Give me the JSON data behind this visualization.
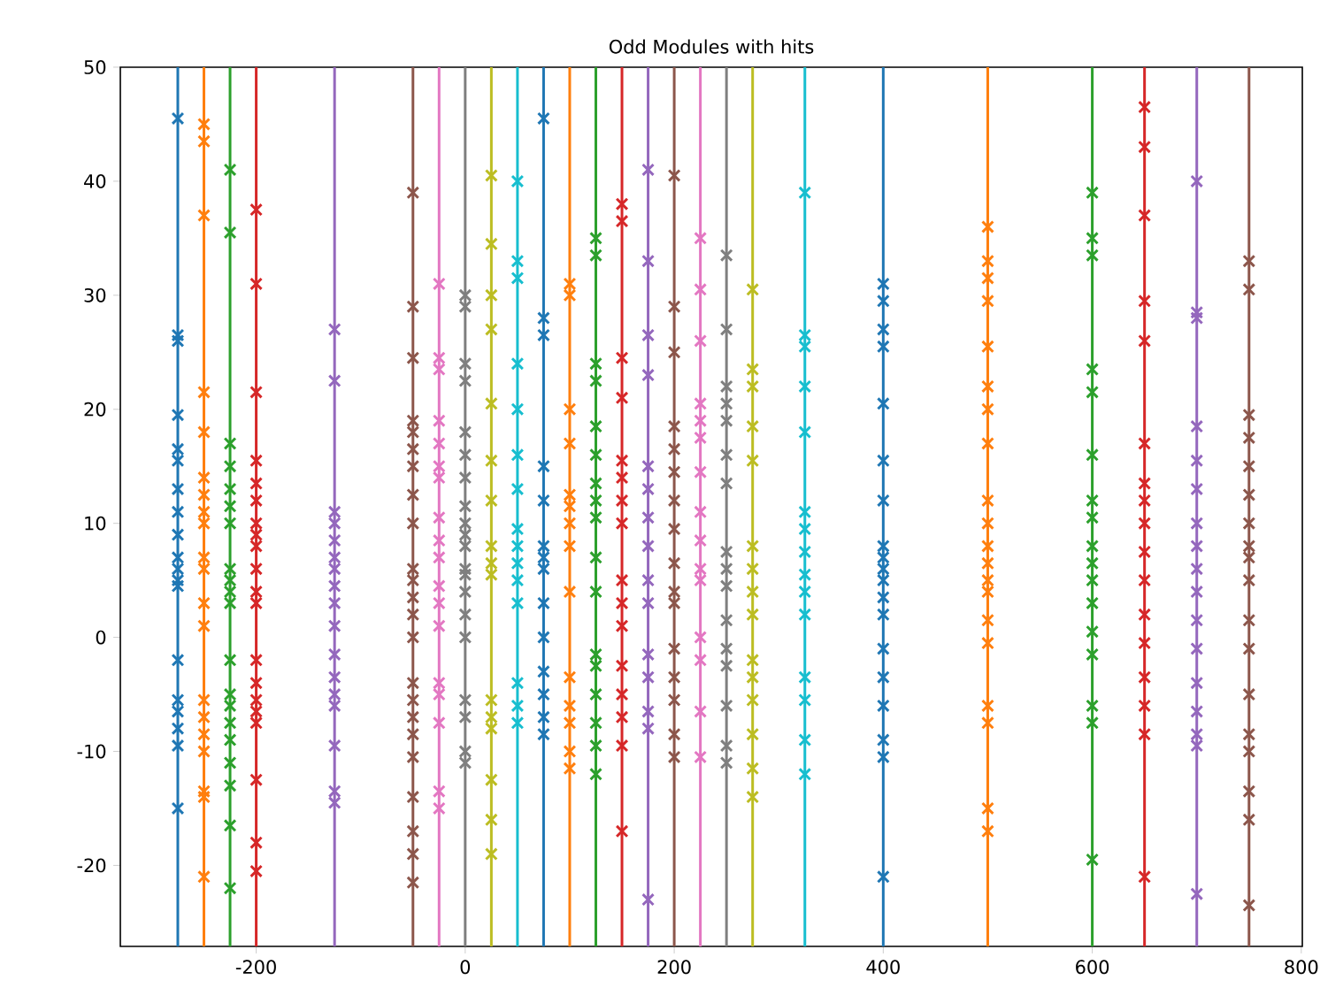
{
  "chart_data": {
    "type": "scatter",
    "title": "Odd Modules with hits",
    "marker": "cross",
    "xlim": [
      -330,
      801
    ],
    "ylim": [
      -27.1,
      50
    ],
    "xticks": [
      -200,
      0,
      200,
      400,
      600,
      800
    ],
    "yticks": [
      -20,
      -10,
      0,
      10,
      20,
      30,
      40,
      50
    ],
    "ref_lines": [
      {
        "axis": "x",
        "value": -275,
        "color": "#1f77b4"
      },
      {
        "axis": "x",
        "value": -250,
        "color": "#ff7f0e"
      },
      {
        "axis": "x",
        "value": -225,
        "color": "#2ca02c"
      },
      {
        "axis": "x",
        "value": -200,
        "color": "#d62728"
      },
      {
        "axis": "x",
        "value": -125,
        "color": "#9467bd"
      },
      {
        "axis": "x",
        "value": -50,
        "color": "#8c564b"
      },
      {
        "axis": "x",
        "value": -25,
        "color": "#e377c2"
      },
      {
        "axis": "x",
        "value": 0,
        "color": "#7f7f7f"
      },
      {
        "axis": "x",
        "value": 25,
        "color": "#bcbd22"
      },
      {
        "axis": "x",
        "value": 50,
        "color": "#17becf"
      },
      {
        "axis": "x",
        "value": 75,
        "color": "#1f77b4"
      },
      {
        "axis": "x",
        "value": 100,
        "color": "#ff7f0e"
      },
      {
        "axis": "x",
        "value": 125,
        "color": "#2ca02c"
      },
      {
        "axis": "x",
        "value": 150,
        "color": "#d62728"
      },
      {
        "axis": "x",
        "value": 175,
        "color": "#9467bd"
      },
      {
        "axis": "x",
        "value": 200,
        "color": "#8c564b"
      },
      {
        "axis": "x",
        "value": 225,
        "color": "#e377c2"
      },
      {
        "axis": "x",
        "value": 250,
        "color": "#7f7f7f"
      },
      {
        "axis": "x",
        "value": 275,
        "color": "#bcbd22"
      },
      {
        "axis": "x",
        "value": 325,
        "color": "#17becf"
      },
      {
        "axis": "x",
        "value": 400,
        "color": "#1f77b4"
      },
      {
        "axis": "x",
        "value": 500,
        "color": "#ff7f0e"
      },
      {
        "axis": "x",
        "value": 600,
        "color": "#2ca02c"
      },
      {
        "axis": "x",
        "value": 650,
        "color": "#d62728"
      },
      {
        "axis": "x",
        "value": 700,
        "color": "#9467bd"
      },
      {
        "axis": "x",
        "value": 750,
        "color": "#8c564b"
      }
    ],
    "series": [
      {
        "color": "#1f77b4",
        "x": [
          -275,
          -275,
          -275,
          -275,
          -275,
          -275,
          -275,
          -275,
          -275,
          -275,
          -275,
          -275,
          -275,
          -275,
          -275,
          -275,
          -275,
          -275,
          -275
        ],
        "values": [
          45.5,
          26.5,
          26,
          19.5,
          16.5,
          15.5,
          13,
          11,
          9,
          7,
          6,
          5,
          4.5,
          -2,
          -5.5,
          -6.5,
          -8,
          -9.5,
          -15
        ]
      },
      {
        "color": "#ff7f0e",
        "x": [
          -250,
          -250,
          -250,
          -250,
          -250,
          -250,
          -250,
          -250,
          -250,
          -250,
          -250,
          -250,
          -250,
          -250,
          -250,
          -250,
          -250,
          -250,
          -250,
          -250
        ],
        "values": [
          43.5,
          45,
          37,
          21.5,
          18,
          14,
          12.5,
          11,
          10,
          7,
          6,
          3,
          1,
          -5.5,
          -7,
          -8.5,
          -10,
          -13.5,
          -14,
          -21
        ]
      },
      {
        "color": "#2ca02c",
        "x": [
          -225,
          -225,
          -225,
          -225,
          -225,
          -225,
          -225,
          -225,
          -225,
          -225,
          -225,
          -225,
          -225,
          -225,
          -225,
          -225,
          -225,
          -225,
          -225,
          -225
        ],
        "values": [
          41,
          35.5,
          17,
          15,
          13,
          11.5,
          10,
          6,
          5,
          4,
          3,
          -2,
          -5,
          -6,
          -7.5,
          -9,
          -11,
          -13,
          -16.5,
          -22
        ]
      },
      {
        "color": "#d62728",
        "x": [
          -200,
          -200,
          -200,
          -200,
          -200,
          -200,
          -200,
          -200,
          -200,
          -200,
          -200,
          -200,
          -200,
          -200,
          -200,
          -200,
          -200,
          -200,
          -200,
          -200
        ],
        "values": [
          37.5,
          31,
          21.5,
          15.5,
          13.5,
          12,
          10,
          9,
          8,
          6,
          4,
          3,
          -2,
          -4,
          -5.5,
          -6.5,
          -7.5,
          -12.5,
          -18,
          -20.5
        ]
      },
      {
        "color": "#9467bd",
        "x": [
          -125,
          -125,
          -125,
          -125,
          -125,
          -125,
          -125,
          -125,
          -125,
          -125,
          -125,
          -125,
          -125,
          -125,
          -125,
          -125,
          -125
        ],
        "values": [
          27,
          22.5,
          11,
          10,
          8.5,
          7,
          6,
          4.5,
          3,
          1,
          -1.5,
          -3.5,
          -5,
          -6,
          -9.5,
          -13.5,
          -14.5
        ]
      },
      {
        "color": "#8c564b",
        "x": [
          -50,
          -50,
          -50,
          -50,
          -50,
          -50,
          -50,
          -50,
          -50,
          -50,
          -50,
          -50,
          -50,
          -50,
          -50,
          -50,
          -50,
          -50,
          -50,
          -50,
          -50,
          -50,
          -50
        ],
        "values": [
          39,
          29,
          24.5,
          19,
          18,
          16.5,
          15,
          12.5,
          10,
          6,
          5,
          3.5,
          2,
          0,
          -4,
          -5.5,
          -7,
          -8.5,
          -10.5,
          -14,
          -17,
          -19,
          -21.5
        ]
      },
      {
        "color": "#e377c2",
        "x": [
          -25,
          -25,
          -25,
          -25,
          -25,
          -25,
          -25,
          -25,
          -25,
          -25,
          -25,
          -25,
          -25,
          -25,
          -25,
          -25,
          -25,
          -25
        ],
        "values": [
          31,
          24.5,
          23.5,
          19,
          17,
          15,
          14,
          10.5,
          8.5,
          7,
          4.5,
          3,
          1,
          -4,
          -5,
          -7.5,
          -13.5,
          -15
        ]
      },
      {
        "color": "#7f7f7f",
        "x": [
          0,
          0,
          0,
          0,
          0,
          0,
          0,
          0,
          0,
          0,
          0,
          0,
          0,
          0,
          0,
          0,
          0,
          0,
          0,
          0
        ],
        "values": [
          30,
          29,
          24,
          22.5,
          18,
          16,
          14,
          11.5,
          10,
          9,
          8,
          6,
          5.5,
          4,
          2,
          0,
          -5.5,
          -7,
          -10,
          -11
        ]
      },
      {
        "color": "#bcbd22",
        "x": [
          25,
          25,
          25,
          25,
          25,
          25,
          25,
          25,
          25,
          25,
          25,
          25,
          25,
          25,
          25,
          25
        ],
        "values": [
          40.5,
          34.5,
          30,
          27,
          20.5,
          15.5,
          12,
          8,
          6.5,
          5.5,
          -5.5,
          -7,
          -8,
          -12.5,
          -16,
          -19
        ]
      },
      {
        "color": "#17becf",
        "x": [
          50,
          50,
          50,
          50,
          50,
          50,
          50,
          50,
          50,
          50,
          50,
          50,
          50,
          50,
          50
        ],
        "values": [
          40,
          33,
          31.5,
          24,
          20,
          16,
          13,
          9.5,
          8,
          6.5,
          5,
          3,
          -4,
          -6,
          -7.5
        ]
      },
      {
        "color": "#1f77b4",
        "x": [
          75,
          75,
          75,
          75,
          75,
          75,
          75,
          75,
          75,
          75,
          75,
          75,
          75,
          75
        ],
        "values": [
          45.5,
          28,
          26.5,
          15,
          12,
          8,
          7,
          6,
          3,
          0,
          -3,
          -5,
          -7,
          -8.5
        ]
      },
      {
        "color": "#ff7f0e",
        "x": [
          100,
          100,
          100,
          100,
          100,
          100,
          100,
          100,
          100,
          100,
          100,
          100,
          100,
          100
        ],
        "values": [
          31,
          30,
          20,
          17,
          12.5,
          11.5,
          10,
          8,
          4,
          -3.5,
          -6,
          -7.5,
          -10,
          -11.5
        ]
      },
      {
        "color": "#2ca02c",
        "x": [
          125,
          125,
          125,
          125,
          125,
          125,
          125,
          125,
          125,
          125,
          125,
          125,
          125,
          125,
          125,
          125,
          125
        ],
        "values": [
          35,
          33.5,
          24,
          22.5,
          18.5,
          16,
          13.5,
          12,
          10.5,
          7,
          4,
          -1.5,
          -2.5,
          -5,
          -7.5,
          -9.5,
          -12
        ]
      },
      {
        "color": "#d62728",
        "x": [
          150,
          150,
          150,
          150,
          150,
          150,
          150,
          150,
          150,
          150,
          150,
          150,
          150,
          150,
          150,
          150
        ],
        "values": [
          38,
          36.5,
          24.5,
          21,
          15.5,
          14,
          12,
          10,
          5,
          3,
          1,
          -2.5,
          -5,
          -7,
          -9.5,
          -17
        ]
      },
      {
        "color": "#9467bd",
        "x": [
          175,
          175,
          175,
          175,
          175,
          175,
          175,
          175,
          175,
          175,
          175,
          175,
          175,
          175,
          175
        ],
        "values": [
          41,
          33,
          26.5,
          23,
          15,
          13,
          10.5,
          8,
          5,
          3,
          -1.5,
          -3.5,
          -6.5,
          -8,
          -23
        ]
      },
      {
        "color": "#8c564b",
        "x": [
          200,
          200,
          200,
          200,
          200,
          200,
          200,
          200,
          200,
          200,
          200,
          200,
          200,
          200,
          200,
          200
        ],
        "values": [
          40.5,
          29,
          25,
          18.5,
          16.5,
          14.5,
          12,
          9.5,
          6.5,
          4,
          3,
          -1,
          -3.5,
          -5.5,
          -8.5,
          -10.5
        ]
      },
      {
        "color": "#e377c2",
        "x": [
          225,
          225,
          225,
          225,
          225,
          225,
          225,
          225,
          225,
          225,
          225,
          225,
          225,
          225,
          225
        ],
        "values": [
          35,
          30.5,
          26,
          20.5,
          19,
          17.5,
          14.5,
          11,
          8.5,
          6,
          5,
          0,
          -2,
          -6.5,
          -10.5
        ]
      },
      {
        "color": "#7f7f7f",
        "x": [
          250,
          250,
          250,
          250,
          250,
          250,
          250,
          250,
          250,
          250,
          250,
          250,
          250,
          250,
          250,
          250
        ],
        "values": [
          33.5,
          27,
          22,
          20.5,
          19,
          16,
          13.5,
          7.5,
          6,
          4.5,
          1.5,
          -1,
          -2.5,
          -6,
          -9.5,
          -11
        ]
      },
      {
        "color": "#bcbd22",
        "x": [
          275,
          275,
          275,
          275,
          275,
          275,
          275,
          275,
          275,
          275,
          275,
          275,
          275,
          275,
          275
        ],
        "values": [
          30.5,
          23.5,
          22,
          18.5,
          15.5,
          8,
          6,
          4,
          2,
          -2,
          -3.5,
          -5.5,
          -8.5,
          -11.5,
          -14
        ]
      },
      {
        "color": "#17becf",
        "x": [
          325,
          325,
          325,
          325,
          325,
          325,
          325,
          325,
          325,
          325,
          325,
          325,
          325,
          325,
          325
        ],
        "values": [
          39,
          26.5,
          25.5,
          22,
          18,
          11,
          9.5,
          7.5,
          5.5,
          4,
          2,
          -3.5,
          -5.5,
          -9,
          -12
        ]
      },
      {
        "color": "#1f77b4",
        "x": [
          400,
          400,
          400,
          400,
          400,
          400,
          400,
          400,
          400,
          400,
          400,
          400,
          400,
          400,
          400,
          400,
          400,
          400,
          400
        ],
        "values": [
          31,
          29.5,
          27,
          25.5,
          20.5,
          15.5,
          12,
          8,
          7,
          6,
          5,
          3.5,
          2,
          -1,
          -3.5,
          -6,
          -9,
          -10.5,
          -21
        ]
      },
      {
        "color": "#ff7f0e",
        "x": [
          500,
          500,
          500,
          500,
          500,
          500,
          500,
          500,
          500,
          500,
          500,
          500,
          500,
          500,
          500,
          500,
          500,
          500,
          500,
          500
        ],
        "values": [
          36,
          33,
          31.5,
          29.5,
          25.5,
          22,
          20,
          17,
          12,
          10,
          8,
          6.5,
          5,
          4,
          1.5,
          -0.5,
          -6,
          -7.5,
          -15,
          -17
        ]
      },
      {
        "color": "#2ca02c",
        "x": [
          600,
          600,
          600,
          600,
          600,
          600,
          600,
          600,
          600,
          600,
          600,
          600,
          600,
          600,
          600,
          600,
          600
        ],
        "values": [
          39,
          35,
          33.5,
          23.5,
          21.5,
          16,
          12,
          10.5,
          8,
          6.5,
          5,
          3,
          0.5,
          -1.5,
          -6,
          -7.5,
          -19.5
        ]
      },
      {
        "color": "#d62728",
        "x": [
          650,
          650,
          650,
          650,
          650,
          650,
          650,
          650,
          650,
          650,
          650,
          650,
          650,
          650,
          650,
          650,
          650
        ],
        "values": [
          46.5,
          43,
          37,
          29.5,
          26,
          17,
          13.5,
          12,
          10,
          7.5,
          5,
          2,
          -0.5,
          -3.5,
          -6,
          -8.5,
          -21
        ]
      },
      {
        "color": "#9467bd",
        "x": [
          700,
          700,
          700,
          700,
          700,
          700,
          700,
          700,
          700,
          700,
          700,
          700,
          700,
          700,
          700,
          700,
          700
        ],
        "values": [
          40,
          28.5,
          28,
          18.5,
          15.5,
          13,
          10,
          8,
          6,
          4,
          1.5,
          -1,
          -4,
          -6.5,
          -8.5,
          -9.5,
          -22.5
        ]
      },
      {
        "color": "#8c564b",
        "x": [
          750,
          750,
          750,
          750,
          750,
          750,
          750,
          750,
          750,
          750,
          750,
          750,
          750,
          750,
          750,
          750,
          750,
          750
        ],
        "values": [
          33,
          30.5,
          19.5,
          17.5,
          15,
          12.5,
          10,
          8,
          7,
          5,
          1.5,
          -1,
          -5,
          -8.5,
          -10,
          -13.5,
          -16,
          -23.5
        ]
      }
    ]
  }
}
